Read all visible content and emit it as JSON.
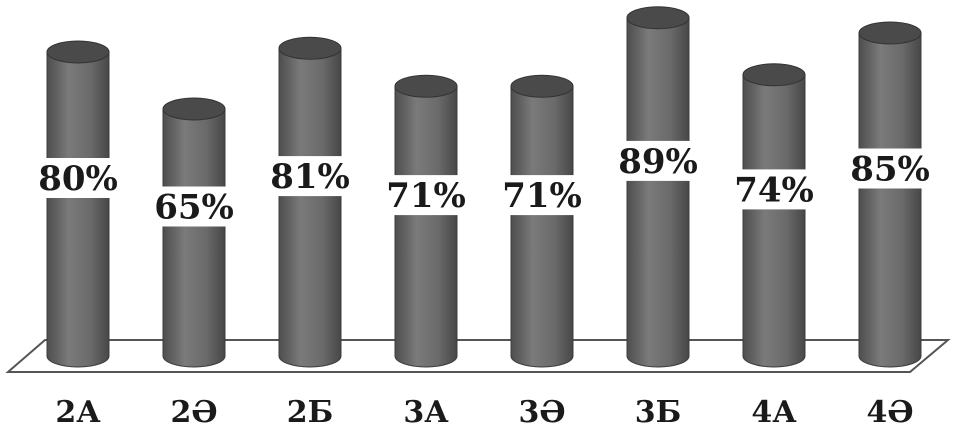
{
  "chart_data": {
    "type": "bar",
    "style": "3d-cylinder",
    "categories": [
      "2А",
      "2Ә",
      "2Б",
      "3А",
      "3Ә",
      "3Б",
      "4А",
      "4Ә"
    ],
    "values": [
      80,
      65,
      81,
      71,
      71,
      89,
      74,
      85
    ],
    "value_labels": [
      "80%",
      "65%",
      "81%",
      "71%",
      "71%",
      "89%",
      "74%",
      "85%"
    ],
    "unit": "%",
    "title": "",
    "xlabel": "",
    "ylabel": "",
    "ylim": [
      0,
      100
    ],
    "grid": false,
    "legend": "none",
    "colors": {
      "bar": "#6a6a6a",
      "bar_top": "#4a4a4a",
      "label_box": "#ffffff",
      "floor": "#ffffff",
      "floor_stroke": "#555555",
      "text": "#1a1a1a"
    }
  }
}
